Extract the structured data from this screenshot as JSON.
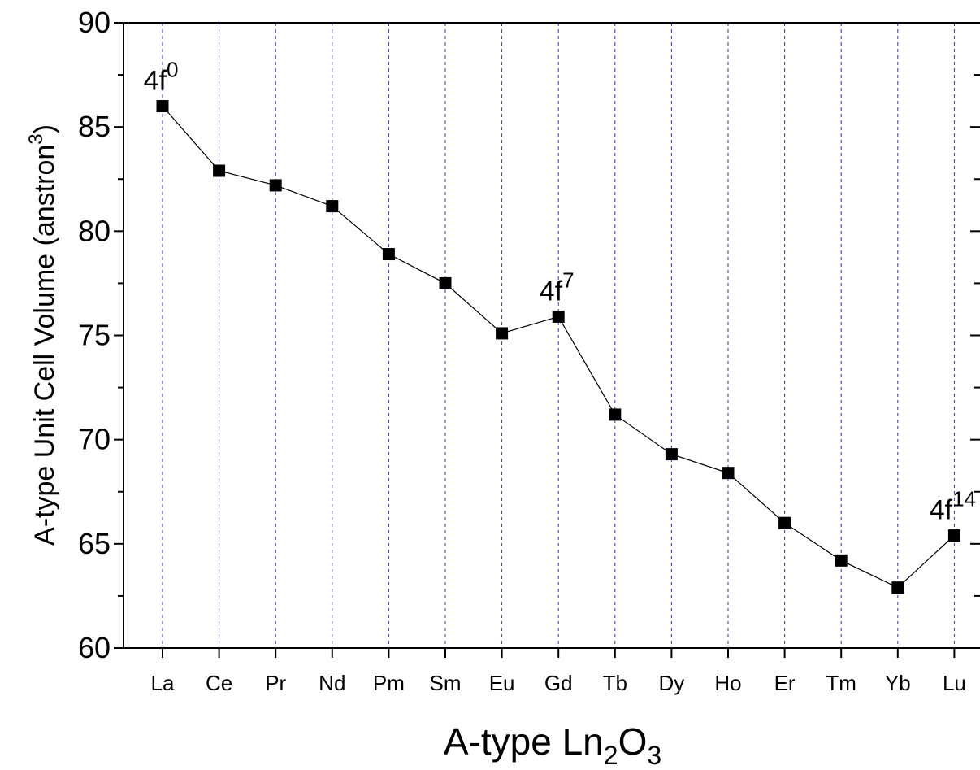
{
  "chart_data": {
    "type": "line",
    "categories": [
      "La",
      "Ce",
      "Pr",
      "Nd",
      "Pm",
      "Sm",
      "Eu",
      "Gd",
      "Tb",
      "Dy",
      "Ho",
      "Er",
      "Tm",
      "Yb",
      "Lu"
    ],
    "series": [
      {
        "values": [
          86.0,
          82.9,
          82.2,
          81.2,
          78.9,
          77.5,
          75.1,
          75.9,
          71.2,
          69.3,
          68.4,
          66.0,
          64.2,
          62.9,
          65.4
        ],
        "marker": "square",
        "color": "#000000"
      }
    ],
    "xlabel": {
      "prefix": "A-type Ln",
      "sub1": "2",
      "mid": "O",
      "sub2": "3"
    },
    "ylabel": {
      "main": "A-type Unit Cell Volume (anstron",
      "sup": "3",
      "end": ")"
    },
    "ylim": [
      60,
      90
    ],
    "yticks": [
      60,
      65,
      70,
      75,
      80,
      85,
      90
    ],
    "grid": {
      "vertical": true,
      "style": "dashed",
      "color": "#3333cc"
    },
    "annotations": [
      {
        "category": "La",
        "base": "4f",
        "sup": "0"
      },
      {
        "category": "Gd",
        "base": "4f",
        "sup": "7"
      },
      {
        "category": "Lu",
        "base": "4f",
        "sup": "14"
      }
    ]
  }
}
